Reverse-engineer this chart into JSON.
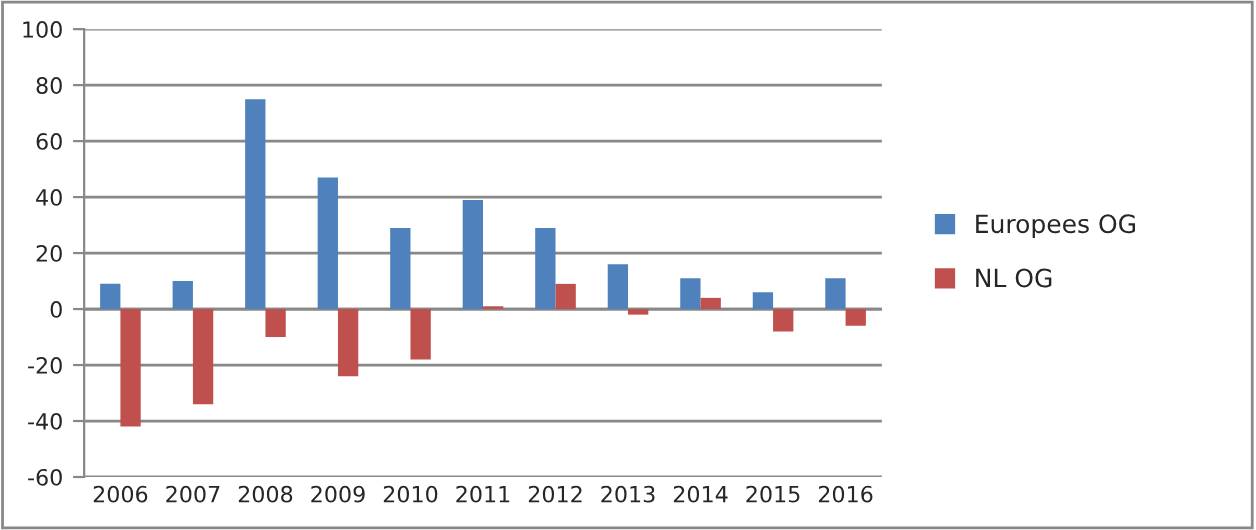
{
  "chart_data": {
    "type": "bar",
    "categories": [
      "2006",
      "2007",
      "2008",
      "2009",
      "2010",
      "2011",
      "2012",
      "2013",
      "2014",
      "2015",
      "2016"
    ],
    "series": [
      {
        "name": "Europees OG",
        "color": "#4f81bd",
        "values": [
          9,
          10,
          75,
          47,
          29,
          39,
          29,
          16,
          11,
          6,
          11
        ]
      },
      {
        "name": "NL OG",
        "color": "#c0504d",
        "values": [
          -42,
          -34,
          -10,
          -24,
          -18,
          1,
          9,
          -2,
          4,
          -8,
          -6
        ]
      }
    ],
    "ylim": [
      -60,
      100
    ],
    "yticks": [
      -60,
      -40,
      -20,
      0,
      20,
      40,
      60,
      80,
      100
    ],
    "grid": "y",
    "legend": "right"
  }
}
